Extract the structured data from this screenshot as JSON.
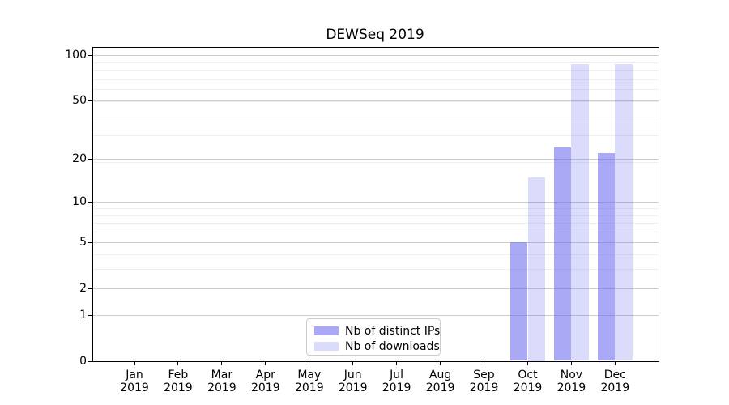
{
  "figure": {
    "title": "DEWSeq 2019"
  },
  "chart_data": {
    "type": "bar",
    "title": "DEWSeq 2019",
    "categories": [
      "Jan",
      "Feb",
      "Mar",
      "Apr",
      "May",
      "Jun",
      "Jul",
      "Aug",
      "Sep",
      "Oct",
      "Nov",
      "Dec"
    ],
    "x_tick_year": "2019",
    "series": [
      {
        "name": "Nb of distinct IPs",
        "color": "rgba(102,102,238,0.56)",
        "values": [
          0,
          0,
          0,
          0,
          0,
          0,
          0,
          0,
          0,
          5,
          24,
          22
        ]
      },
      {
        "name": "Nb of downloads",
        "color": "rgba(102,102,238,0.235)",
        "values": [
          0,
          0,
          0,
          0,
          0,
          0,
          0,
          0,
          0,
          15,
          87,
          87
        ]
      }
    ],
    "xlabel": "",
    "ylabel": "",
    "yscale": "log1p",
    "y_ticks": [
      0,
      1,
      2,
      5,
      10,
      20,
      50,
      100
    ],
    "y_minor_grid_values": [
      2,
      3,
      4,
      5,
      6,
      7,
      8,
      9,
      10,
      20,
      30,
      40,
      50,
      60,
      70,
      80,
      90,
      100
    ],
    "ylim": [
      0,
      111
    ],
    "grid": true,
    "legend_position": "lower center"
  }
}
